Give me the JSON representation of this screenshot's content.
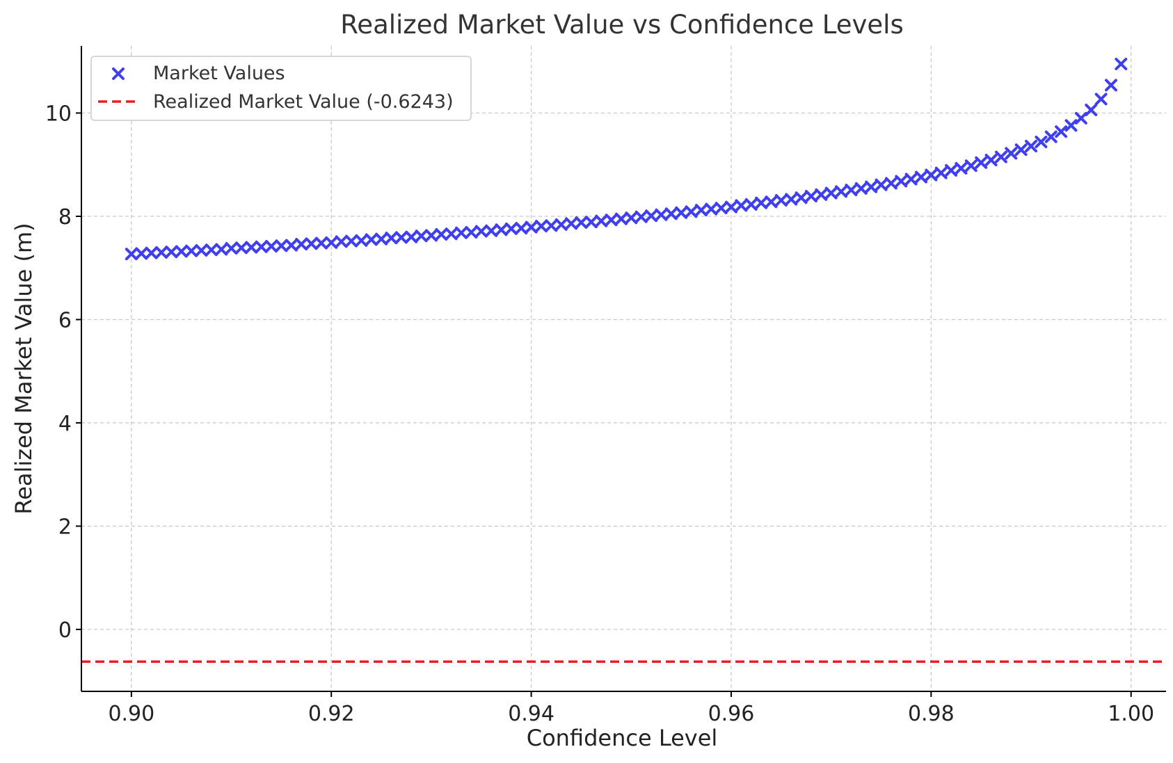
{
  "chart_data": {
    "type": "scatter",
    "title": "Realized Market Value vs Confidence Levels",
    "xlabel": "Confidence Level",
    "ylabel": "Realized Market Value (m)",
    "xlim": [
      0.895,
      1.0035
    ],
    "ylim": [
      -1.2,
      11.3
    ],
    "xticks": [
      0.9,
      0.92,
      0.94,
      0.96,
      0.98,
      1.0
    ],
    "xtick_labels": [
      "0.90",
      "0.92",
      "0.94",
      "0.96",
      "0.98",
      "1.00"
    ],
    "yticks": [
      0,
      2,
      4,
      6,
      8,
      10
    ],
    "ytick_labels": [
      "0",
      "2",
      "4",
      "6",
      "8",
      "10"
    ],
    "grid": true,
    "legend_position": "top-left",
    "series": [
      {
        "name": "Market Values",
        "kind": "scatter",
        "marker": "x",
        "color": "#3f3ff0",
        "x": [
          0.9,
          0.901,
          0.902,
          0.903,
          0.904,
          0.905,
          0.906,
          0.907,
          0.908,
          0.909,
          0.91,
          0.911,
          0.912,
          0.913,
          0.914,
          0.915,
          0.916,
          0.917,
          0.918,
          0.919,
          0.92,
          0.921,
          0.922,
          0.923,
          0.924,
          0.925,
          0.926,
          0.927,
          0.928,
          0.929,
          0.93,
          0.931,
          0.932,
          0.933,
          0.934,
          0.935,
          0.936,
          0.937,
          0.938,
          0.939,
          0.94,
          0.941,
          0.942,
          0.943,
          0.944,
          0.945,
          0.946,
          0.947,
          0.948,
          0.949,
          0.95,
          0.951,
          0.952,
          0.953,
          0.954,
          0.955,
          0.956,
          0.957,
          0.958,
          0.959,
          0.96,
          0.961,
          0.962,
          0.963,
          0.964,
          0.965,
          0.966,
          0.967,
          0.968,
          0.969,
          0.97,
          0.971,
          0.972,
          0.973,
          0.974,
          0.975,
          0.976,
          0.977,
          0.978,
          0.979,
          0.98,
          0.981,
          0.982,
          0.983,
          0.984,
          0.985,
          0.986,
          0.987,
          0.988,
          0.989,
          0.99,
          0.991,
          0.992,
          0.993,
          0.994,
          0.995,
          0.996,
          0.997,
          0.998,
          0.999
        ],
        "y": [
          7.27,
          7.28,
          7.29,
          7.3,
          7.31,
          7.32,
          7.33,
          7.34,
          7.35,
          7.36,
          7.38,
          7.39,
          7.4,
          7.41,
          7.42,
          7.43,
          7.44,
          7.46,
          7.47,
          7.48,
          7.49,
          7.51,
          7.52,
          7.53,
          7.55,
          7.56,
          7.58,
          7.59,
          7.6,
          7.62,
          7.63,
          7.65,
          7.66,
          7.68,
          7.69,
          7.71,
          7.72,
          7.74,
          7.76,
          7.77,
          7.79,
          7.81,
          7.82,
          7.84,
          7.86,
          7.88,
          7.89,
          7.91,
          7.93,
          7.95,
          7.97,
          7.99,
          8.01,
          8.03,
          8.05,
          8.07,
          8.09,
          8.12,
          8.14,
          8.16,
          8.18,
          8.21,
          8.23,
          8.26,
          8.28,
          8.31,
          8.33,
          8.36,
          8.39,
          8.42,
          8.45,
          8.48,
          8.51,
          8.54,
          8.57,
          8.61,
          8.64,
          8.68,
          8.72,
          8.76,
          8.8,
          8.84,
          8.89,
          8.93,
          8.98,
          9.04,
          9.09,
          9.15,
          9.22,
          9.29,
          9.36,
          9.44,
          9.54,
          9.64,
          9.76,
          9.9,
          10.06,
          10.27,
          10.54,
          10.95
        ]
      },
      {
        "name": "Realized Market Value (-0.6243)",
        "kind": "hline",
        "linestyle": "dashed",
        "color": "#ee1c1c",
        "y": -0.6243
      }
    ]
  }
}
